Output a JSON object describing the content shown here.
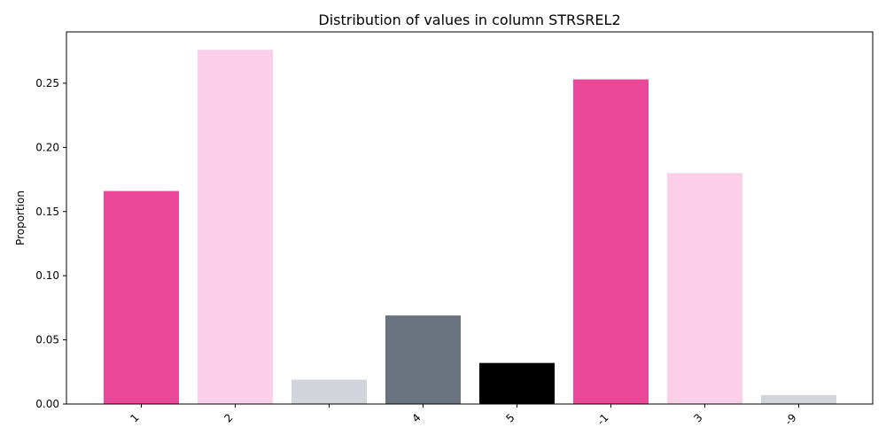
{
  "chart_data": {
    "type": "bar",
    "title": "Distribution of values in column STRSREL2",
    "xlabel": "",
    "ylabel": "Proportion",
    "categories": [
      "1",
      "2",
      "",
      "4",
      "5",
      "-1",
      "3",
      "-9"
    ],
    "values": [
      0.166,
      0.276,
      0.019,
      0.069,
      0.032,
      0.253,
      0.18,
      0.007
    ],
    "colors": [
      "#ec4899",
      "#fbcfe8",
      "#d1d5db",
      "#6b7280",
      "#000000",
      "#ec4899",
      "#fbcfe8",
      "#d1d5db"
    ],
    "ylim": [
      0,
      0.29
    ],
    "yticks": [
      "0.00",
      "0.05",
      "0.10",
      "0.15",
      "0.20",
      "0.25"
    ],
    "grid": false,
    "legend": "none"
  }
}
